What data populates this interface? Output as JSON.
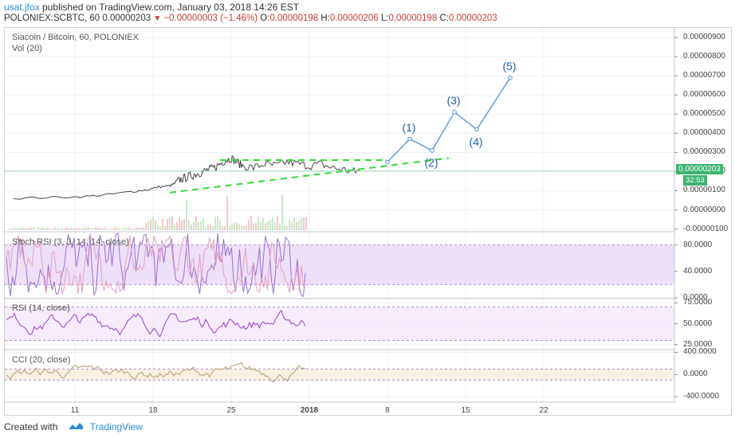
{
  "header": {
    "user": "usat.jfox",
    "published_text": "published on TradingView.com, January 03, 2018 14:26 EST",
    "symbol": "POLONIEX:SCBTC, 60",
    "last": "0.00000203",
    "change": "−0.00000003 (−1.46%)",
    "o_label": "O:",
    "o_value": "0.00000198",
    "h_label": "H:",
    "h_value": "0.00000206",
    "l_label": "L:",
    "l_value": "0.00000198",
    "c_label": "C:",
    "c_value": "0.00000203"
  },
  "panels": {
    "main_title": "Siacoin / Bitcoin, 60, POLONIEX",
    "vol_label": "Vol (20)",
    "stoch_label": "Stoch RSI (3, 3, 14, 14, close)",
    "rsi_label": "RSI (14, close)",
    "cci_label": "CCI (20, close)"
  },
  "price_tag": "0.00000203",
  "time_tag": "32:53",
  "footer": {
    "created_with": "Created with",
    "brand": "TradingView"
  },
  "colors": {
    "accent": "#2e8bd6",
    "price_line": "#444444",
    "trendline": "#33dd33",
    "wave": "#1a5fb4",
    "stoch": "#9a6fcf",
    "stoch_band": "#e9d6f7",
    "rsi": "#9c3fc8",
    "rsi_band": "#f3e6fb",
    "cci": "#b89a6a",
    "cci_band": "#f6ecd9",
    "down": "#c43b3b"
  },
  "chart_data": [
    {
      "type": "line",
      "title": "Siacoin / Bitcoin, 60, POLONIEX",
      "x_ticks": [
        "11",
        "18",
        "25",
        "2018",
        "8",
        "15",
        "22"
      ],
      "y_ticks": [
        "0.00000900",
        "0.00000800",
        "0.00000700",
        "0.00000600",
        "0.00000500",
        "0.00000400",
        "0.00000300",
        "0.00000200",
        "0.00000100",
        "0.00000000",
        "-0.00000100"
      ],
      "ylim": [
        -1.1e-06,
        9.5e-06
      ],
      "series": [
        {
          "x": [
            5.5,
            9,
            12,
            14,
            16,
            17.5,
            18.5,
            19.5,
            20,
            20.5,
            21,
            21.5,
            22,
            22.5,
            23,
            23.5,
            24,
            24.5,
            25,
            25.5,
            26,
            27,
            28,
            29,
            30,
            31,
            32,
            33,
            34,
            35,
            36,
            36.5
          ],
          "values": [
            6e-07,
            6.5e-07,
            7e-07,
            8e-07,
            9.5e-07,
            1.05e-06,
            1.2e-06,
            1.25e-06,
            1.4e-06,
            1.6e-06,
            1.7e-06,
            1.8e-06,
            1.9e-06,
            2e-06,
            2.1e-06,
            2.2e-06,
            2.4e-06,
            2.6e-06,
            2.7e-06,
            2.5e-06,
            2.3e-06,
            2.2e-06,
            2.4e-06,
            2.3e-06,
            2.5e-06,
            2.4e-06,
            2.3e-06,
            2.4e-06,
            2.2e-06,
            2.1e-06,
            2e-06,
            2.03e-06
          ]
        }
      ],
      "trendlines": [
        {
          "style": "dashed",
          "x": [
            24,
            39
          ],
          "values": [
            2.6e-06,
            2.6e-06
          ]
        },
        {
          "style": "dashed",
          "x": [
            19.5,
            44.5
          ],
          "values": [
            9e-07,
            2.7e-06
          ]
        }
      ],
      "projection": {
        "x": [
          39,
          41,
          43,
          45,
          47,
          50
        ],
        "values": [
          2.5e-06,
          3.7e-06,
          3.1e-06,
          5.1e-06,
          4.2e-06,
          6.9e-06
        ]
      },
      "annotations": [
        "(1)",
        "(2)",
        "(3)",
        "(4)",
        "(5)"
      ]
    },
    {
      "type": "line",
      "title": "Stoch RSI (3, 3, 14, 14, close)",
      "y_ticks": [
        "80.0000",
        "40.0000",
        "0.0000"
      ],
      "ylim": [
        0,
        100
      ],
      "band": [
        20,
        80
      ]
    },
    {
      "type": "line",
      "title": "RSI (14, close)",
      "y_ticks": [
        "75.0000",
        "50.0000",
        "25.0000"
      ],
      "ylim": [
        20,
        80
      ],
      "band": [
        30,
        70
      ]
    },
    {
      "type": "line",
      "title": "CCI (20, close)",
      "y_ticks": [
        "400.0000",
        "0.0000",
        "-400.0000"
      ],
      "ylim": [
        -500,
        450
      ],
      "band": [
        -100,
        100
      ]
    }
  ]
}
